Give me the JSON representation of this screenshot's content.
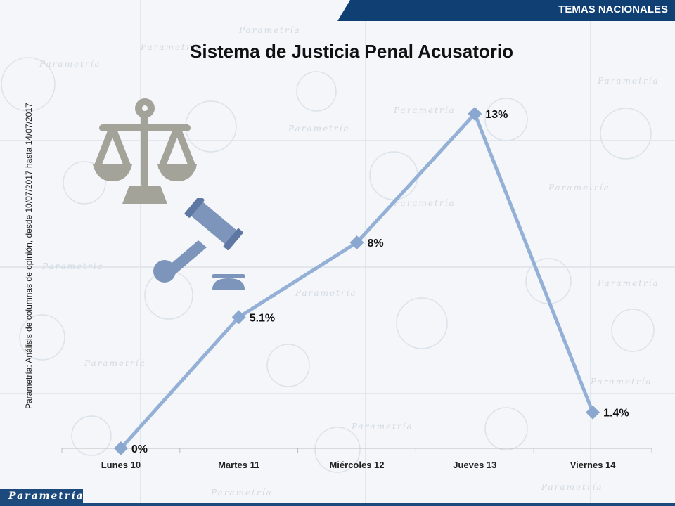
{
  "header": {
    "section_label": "TEMAS NACIONALES",
    "title": "Sistema de Justicia Penal Acusatorio"
  },
  "source_note": "Parametría: Análisis de columnas de opinión, desde 10/07/2017 hasta 14/07/2017",
  "branding": {
    "logo_text": "Parametría",
    "watermark_text": "Parametría"
  },
  "colors": {
    "banner": "#0f3f73",
    "series_line": "#94b0d6",
    "marker": "#8aa7cf",
    "scale_icon": "#a3a39a",
    "gavel_icon": "#7d95bb"
  },
  "icons": [
    "scales-of-justice-icon",
    "gavel-icon"
  ],
  "chart_data": {
    "type": "line",
    "title": "Sistema de Justicia Penal Acusatorio",
    "categories": [
      "Lunes 10",
      "Martes 11",
      "Miércoles 12",
      "Jueves 13",
      "Viernes 14"
    ],
    "series": [
      {
        "values": [
          0,
          5.1,
          8,
          13,
          1.4
        ]
      }
    ],
    "data_labels": [
      "0%",
      "5.1%",
      "8%",
      "13%",
      "1.4%"
    ],
    "ylim": [
      0,
      13
    ],
    "grid": false,
    "legend": false
  }
}
